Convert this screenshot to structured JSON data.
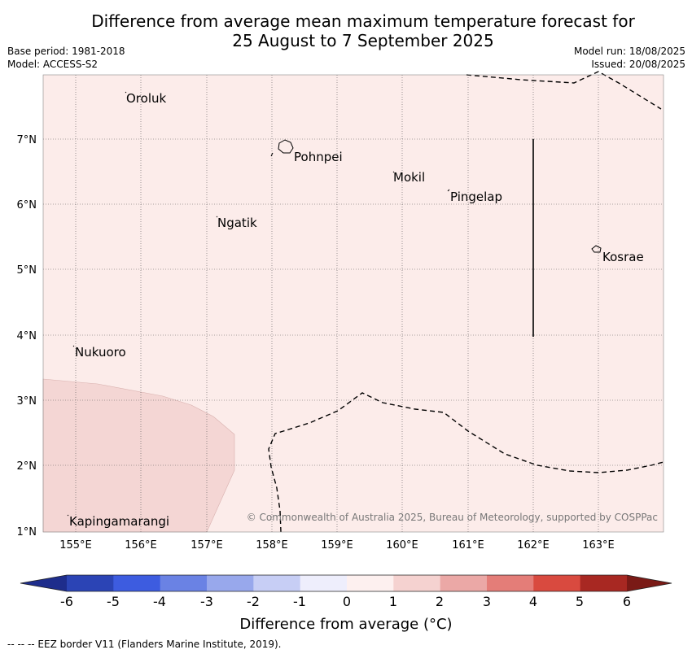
{
  "title": {
    "line1": "Difference from average mean maximum temperature forecast for",
    "line2": "25 August to 7 September 2025"
  },
  "meta": {
    "base_period": "Base period: 1981-2018",
    "model": "Model: ACCESS-S2",
    "model_run": "Model run: 18/08/2025",
    "issued": "Issued: 20/08/2025"
  },
  "map": {
    "lon_ticks": [
      "155°E",
      "156°E",
      "157°E",
      "158°E",
      "159°E",
      "160°E",
      "161°E",
      "162°E",
      "163°E"
    ],
    "lat_ticks": [
      "7°N",
      "6°N",
      "5°N",
      "4°N",
      "3°N",
      "2°N",
      "1°N"
    ],
    "places": [
      {
        "name": "Oroluk"
      },
      {
        "name": "Pohnpei"
      },
      {
        "name": "Mokil"
      },
      {
        "name": "Pingelap"
      },
      {
        "name": "Ngatik"
      },
      {
        "name": "Kosrae"
      },
      {
        "name": "Nukuoro"
      },
      {
        "name": "Kapingamarangi"
      }
    ],
    "copyright": "© Commonwealth of Australia 2025, Bureau of Meteorology, supported by COSPPac",
    "colors": {
      "anomaly_0_1": "#fcecea",
      "anomaly_1_2": "#f4d6d4"
    }
  },
  "colorbar": {
    "ticks": [
      "-6",
      "-5",
      "-4",
      "-3",
      "-2",
      "-1",
      "0",
      "1",
      "2",
      "3",
      "4",
      "5",
      "6"
    ],
    "colors": [
      "#1e2d8c",
      "#2b44b5",
      "#3d5ce0",
      "#6a82e4",
      "#98a8ec",
      "#c7cef5",
      "#eeeefc",
      "#fdf0ef",
      "#f5d2d0",
      "#eba8a6",
      "#e47d78",
      "#d94a3f",
      "#a82822",
      "#7a1a16"
    ],
    "label": "Difference from average (°C)"
  },
  "footer": "--  --  -- EEZ border V11 (Flanders Marine Institute, 2019)."
}
